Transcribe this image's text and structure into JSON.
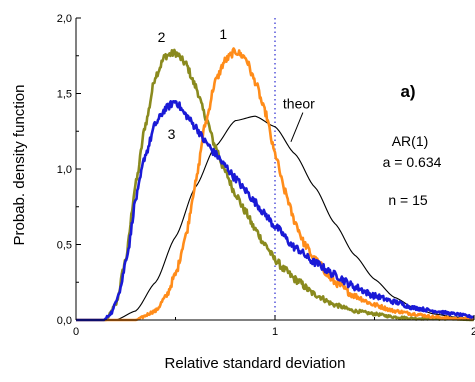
{
  "chart_data": {
    "type": "line",
    "xlabel": "Relative standard deviation",
    "ylabel": "Probab. density function",
    "xlim": [
      0,
      2
    ],
    "ylim": [
      0,
      2
    ],
    "x_ticks": [
      {
        "value": 0,
        "label": "0"
      },
      {
        "value": 1,
        "label": "1"
      },
      {
        "value": 2,
        "label": "2"
      }
    ],
    "y_ticks": [
      {
        "value": 0,
        "label": "0,0"
      },
      {
        "value": 0.5,
        "label": "0,5"
      },
      {
        "value": 1.0,
        "label": "1,0"
      },
      {
        "value": 1.5,
        "label": "1,5"
      },
      {
        "value": 2.0,
        "label": "2,0"
      }
    ],
    "reference_line": {
      "x": 1,
      "color": "#2a2ad0"
    },
    "series": [
      {
        "id": "curve-1",
        "label": "1",
        "label_pos": [
          0.74,
          1.86
        ],
        "color": "#ff8c1a",
        "noisy": true,
        "x": [
          0.3,
          0.4,
          0.45,
          0.5,
          0.55,
          0.6,
          0.65,
          0.7,
          0.75,
          0.8,
          0.85,
          0.9,
          0.95,
          1.0,
          1.05,
          1.1,
          1.15,
          1.2,
          1.3,
          1.4,
          1.5,
          1.6,
          1.7,
          1.8,
          1.9,
          2.0
        ],
        "y": [
          0.0,
          0.06,
          0.15,
          0.3,
          0.55,
          0.9,
          1.3,
          1.58,
          1.72,
          1.78,
          1.74,
          1.58,
          1.38,
          1.1,
          0.85,
          0.65,
          0.5,
          0.4,
          0.25,
          0.16,
          0.1,
          0.06,
          0.04,
          0.02,
          0.01,
          0.01
        ]
      },
      {
        "id": "curve-2",
        "label": "2",
        "label_pos": [
          0.43,
          1.84
        ],
        "color": "#8a8a1e",
        "noisy": true,
        "x": [
          0.15,
          0.2,
          0.25,
          0.3,
          0.35,
          0.4,
          0.45,
          0.5,
          0.55,
          0.6,
          0.65,
          0.7,
          0.75,
          0.8,
          0.85,
          0.9,
          0.95,
          1.0,
          1.05,
          1.1,
          1.2,
          1.3,
          1.4,
          1.5,
          1.6,
          1.7,
          1.8,
          2.0
        ],
        "y": [
          0.0,
          0.1,
          0.4,
          0.9,
          1.3,
          1.62,
          1.75,
          1.77,
          1.7,
          1.55,
          1.35,
          1.15,
          0.98,
          0.84,
          0.72,
          0.6,
          0.5,
          0.4,
          0.33,
          0.27,
          0.17,
          0.1,
          0.06,
          0.04,
          0.02,
          0.01,
          0.01,
          0.0
        ]
      },
      {
        "id": "curve-3",
        "label": "3",
        "label_pos": [
          0.48,
          1.2
        ],
        "color": "#1a1ad6",
        "noisy": true,
        "x": [
          0.14,
          0.18,
          0.22,
          0.26,
          0.3,
          0.35,
          0.4,
          0.45,
          0.5,
          0.55,
          0.6,
          0.65,
          0.7,
          0.75,
          0.8,
          0.85,
          0.9,
          0.95,
          1.0,
          1.1,
          1.2,
          1.3,
          1.4,
          1.5,
          1.6,
          1.7,
          1.8,
          1.9,
          2.0
        ],
        "y": [
          0.0,
          0.05,
          0.2,
          0.45,
          0.8,
          1.1,
          1.3,
          1.4,
          1.45,
          1.36,
          1.28,
          1.18,
          1.1,
          1.02,
          0.94,
          0.86,
          0.78,
          0.7,
          0.62,
          0.48,
          0.38,
          0.3,
          0.22,
          0.16,
          0.12,
          0.08,
          0.06,
          0.04,
          0.02
        ]
      },
      {
        "id": "curve-theor",
        "label": "theor",
        "label_pos": [
          1.12,
          1.4
        ],
        "color": "#000000",
        "noisy": false,
        "x": [
          0.2,
          0.3,
          0.4,
          0.5,
          0.6,
          0.7,
          0.8,
          0.9,
          1.0,
          1.1,
          1.2,
          1.3,
          1.4,
          1.5,
          1.6,
          1.7,
          1.8,
          1.9,
          2.0
        ],
        "y": [
          0.0,
          0.06,
          0.25,
          0.55,
          0.88,
          1.15,
          1.32,
          1.35,
          1.28,
          1.1,
          0.88,
          0.64,
          0.43,
          0.27,
          0.15,
          0.08,
          0.04,
          0.02,
          0.01
        ]
      }
    ],
    "annotations": {
      "panel": "a)",
      "model": "AR(1)",
      "coef": "a = 0.634",
      "n": "n = 15"
    }
  }
}
